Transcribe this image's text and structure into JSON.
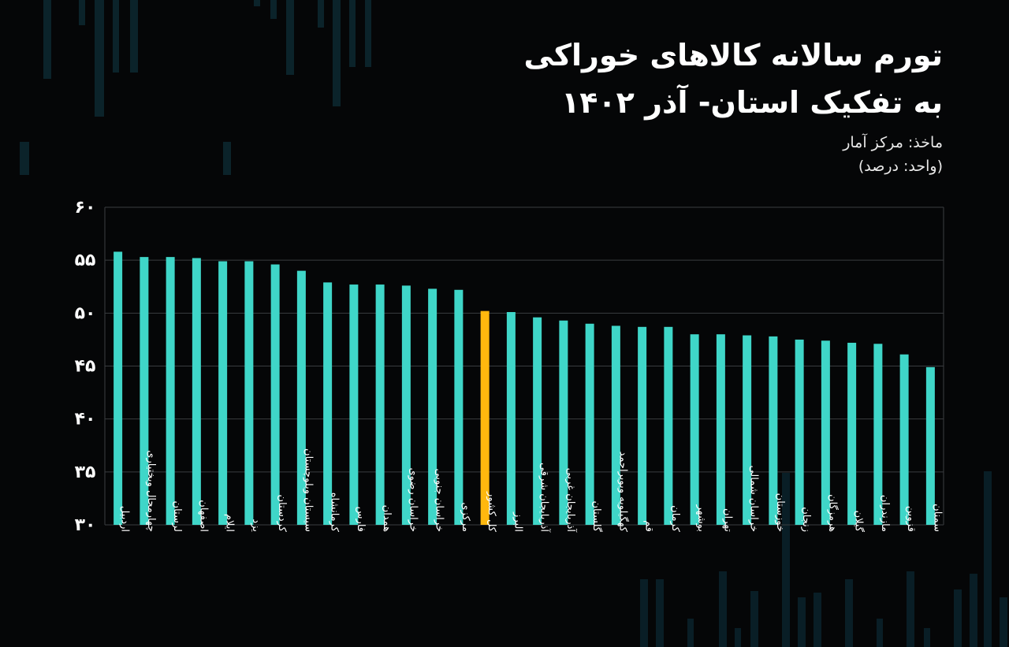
{
  "header": {
    "title_line1": "تورم سالانه کالاهای خوراکی",
    "title_line2": "به تفکیک استان- آذر ۱۴۰۲",
    "source": "ماخذ: مرکز آمار",
    "unit": "(واحد: درصد)"
  },
  "colors": {
    "background": "#050607",
    "bar": "#3fd6c8",
    "highlight": "#ffb80e",
    "grid": "#3a3d40",
    "text": "#ffffff",
    "decor": "#0c2a33"
  },
  "chart_data": {
    "type": "bar",
    "title": "تورم سالانه کالاهای خوراکی به تفکیک استان- آذر ۱۴۰۲",
    "xlabel": "",
    "ylabel": "",
    "ylim": [
      30,
      60
    ],
    "yticks": [
      30,
      35,
      40,
      45,
      50,
      55,
      60
    ],
    "ytick_labels": [
      "۳۰",
      "۳۵",
      "۴۰",
      "۴۵",
      "۵۰",
      "۵۵",
      "۶۰"
    ],
    "grid": true,
    "highlight_category": "کل کشور",
    "categories": [
      "اردبیل",
      "چهارمحال وبختیاری",
      "لرستان",
      "اصفهان",
      "ایلام",
      "یزد",
      "کردستان",
      "سیستان وبلوچستان",
      "کرمانشاه",
      "فارس",
      "همدان",
      "خراسان رضوی",
      "خراسان جنوبی",
      "مرکزی",
      "کل کشور",
      "البرز",
      "آذربایجان شرقی",
      "آذربایجان غربی",
      "گلستان",
      "کهگیلویه وبویراحمد",
      "قم",
      "کرمان",
      "بوشهر",
      "تهران",
      "خراسان شمالی",
      "خوزستان",
      "زنجان",
      "هرمزگان",
      "گیلان",
      "مازندران",
      "قزوین",
      "سمنان"
    ],
    "values": [
      55.8,
      55.3,
      55.3,
      55.2,
      54.9,
      54.9,
      54.6,
      54.0,
      52.9,
      52.7,
      52.7,
      52.6,
      52.3,
      52.2,
      50.2,
      50.1,
      49.6,
      49.3,
      49.0,
      48.8,
      48.7,
      48.7,
      48.0,
      48.0,
      47.9,
      47.8,
      47.5,
      47.4,
      47.2,
      47.1,
      46.1,
      44.9
    ]
  }
}
